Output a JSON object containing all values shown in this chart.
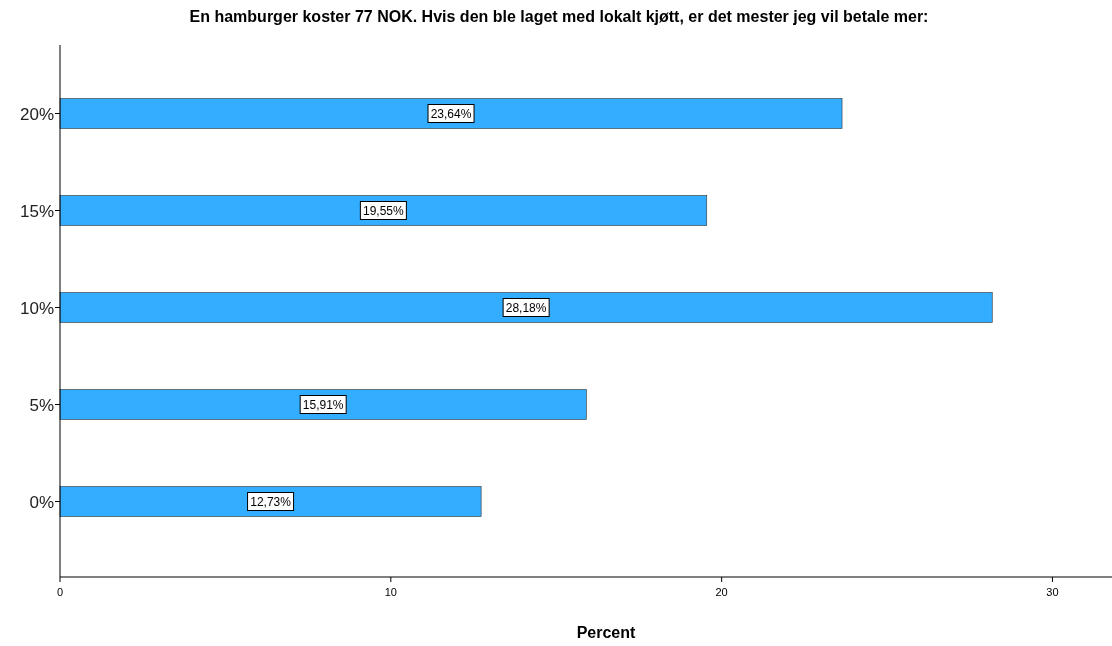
{
  "chart_data": {
    "type": "bar",
    "orientation": "horizontal",
    "title": "En hamburger koster 77 NOK. Hvis den ble laget med lokalt kjøtt, er det mester jeg vil betale mer:",
    "xlabel": "Percent",
    "categories": [
      "20%",
      "15%",
      "10%",
      "5%",
      "0%"
    ],
    "values": [
      23.64,
      19.55,
      28.18,
      15.91,
      12.73
    ],
    "value_labels": [
      "23,64%",
      "19,55%",
      "28,18%",
      "15,91%",
      "12,73%"
    ],
    "color": "#33adff",
    "xlim": [
      0,
      31.8
    ],
    "xticks": [
      0,
      10,
      20,
      30
    ]
  }
}
